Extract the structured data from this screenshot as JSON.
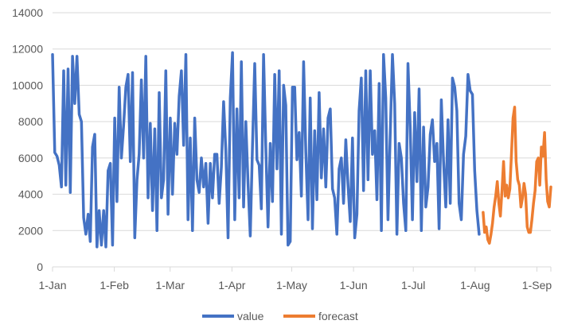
{
  "chart_data": {
    "type": "line",
    "title": "",
    "xlabel": "",
    "ylabel": "",
    "x_tick_labels": [
      "1-Jan",
      "1-Feb",
      "1-Mar",
      "1-Apr",
      "1-May",
      "1-Jun",
      "1-Jul",
      "1-Aug",
      "1-Sep"
    ],
    "x_tick_days": [
      0,
      31,
      59,
      90,
      120,
      151,
      181,
      212,
      243
    ],
    "x_range_days": [
      0,
      250
    ],
    "y_ticks": [
      0,
      2000,
      4000,
      6000,
      8000,
      10000,
      12000,
      14000
    ],
    "y_tick_labels": [
      "0",
      "2000",
      "4000",
      "6000",
      "8000",
      "10000",
      "12000",
      "14000"
    ],
    "ylim": [
      0,
      14000
    ],
    "grid": "horizontal",
    "legend_position": "bottom",
    "series": [
      {
        "name": "value",
        "color": "#4472C4",
        "values": [
          11700,
          6300,
          6100,
          5600,
          4400,
          10800,
          4500,
          10900,
          4100,
          11600,
          9000,
          11600,
          8400,
          8000,
          2700,
          1800,
          2900,
          1400,
          6600,
          7300,
          1100,
          3100,
          1200,
          3100,
          1100,
          5300,
          5700,
          1200,
          8200,
          3600,
          9900,
          6000,
          7800,
          9900,
          10600,
          5800,
          10700,
          1600,
          4800,
          6200,
          10300,
          6000,
          11600,
          3800,
          7900,
          3100,
          7600,
          2000,
          9600,
          3800,
          4800,
          10800,
          2900,
          8200,
          4000,
          7900,
          6200,
          9400,
          10800,
          6700,
          11700,
          2600,
          7100,
          2000,
          8200,
          4800,
          4100,
          6000,
          4400,
          5700,
          2400,
          5700,
          3800,
          6200,
          6200,
          3500,
          5500,
          9100,
          6400,
          1600,
          9300,
          11800,
          2600,
          8700,
          3800,
          11300,
          3300,
          8000,
          4600,
          1700,
          6700,
          11200,
          5900,
          5600,
          3200,
          11700,
          6600,
          2200,
          6800,
          3600,
          10600,
          5400,
          10800,
          1800,
          10000,
          8900,
          1200,
          1400,
          9900,
          9900,
          5900,
          7400,
          3900,
          11300,
          6300,
          2600,
          9300,
          2100,
          7500,
          3700,
          9600,
          4900,
          7600,
          4400,
          8200,
          8700,
          4300,
          3800,
          1800,
          5400,
          6000,
          3500,
          7000,
          4500,
          2500,
          7100,
          1600,
          2900,
          8600,
          10400,
          4200,
          10800,
          4800,
          10800,
          6200,
          7500,
          3700,
          10100,
          2000,
          11700,
          9300,
          2600,
          7300,
          11700,
          9000,
          1800,
          6800,
          6000,
          3500,
          2000,
          11200,
          7700,
          2600,
          8500,
          4700,
          9800,
          2000,
          7700,
          3300,
          4400,
          7300,
          8100,
          5800,
          6800,
          2100,
          9200,
          5800,
          3300,
          8100,
          3500,
          10400,
          9900,
          8600,
          3500,
          2600,
          6200,
          7200,
          10600,
          9700,
          9500,
          5300,
          3100,
          1800
        ]
      },
      {
        "name": "forecast",
        "color": "#ED7D31",
        "values": [
          3000,
          1900,
          2200,
          1500,
          1300,
          1800,
          2400,
          3300,
          3900,
          4700,
          3500,
          2800,
          4200,
          5800,
          3900,
          4500,
          3800,
          4300,
          6200,
          8200,
          8800,
          5800,
          4800,
          4500,
          3300,
          3800,
          4600,
          4000,
          2200,
          1900,
          1900,
          2600,
          3500,
          4200,
          5800,
          6000,
          4500,
          6600,
          6100,
          7400,
          4800,
          3600,
          3300,
          4400
        ]
      }
    ]
  }
}
